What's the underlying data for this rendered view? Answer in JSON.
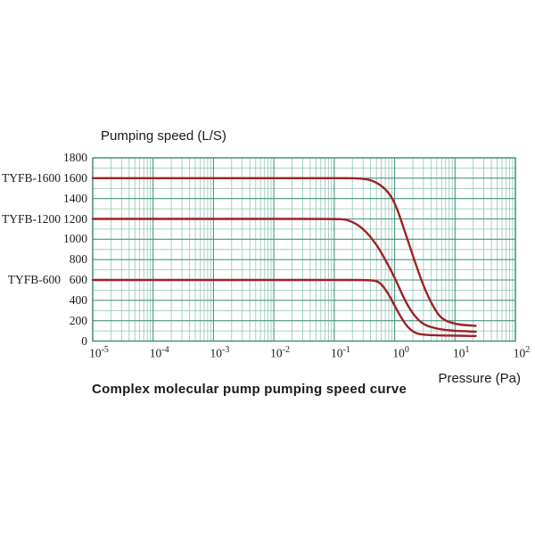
{
  "chart_data": {
    "type": "line",
    "title": "Complex molecular pump pumping speed curve",
    "ylabel": "Pumping speed (L/S)",
    "xlabel": "Pressure (Pa)",
    "x_scale": "log",
    "xlim": [
      1e-05,
      100
    ],
    "ylim": [
      0,
      1800
    ],
    "y_tick_step": 200,
    "y_minor_step": 100,
    "y_ticks": [
      0,
      200,
      400,
      600,
      800,
      1000,
      1200,
      1400,
      1600,
      1800
    ],
    "x_tick_base": "10",
    "x_tick_exponents": [
      -5,
      -4,
      -3,
      -2,
      -1,
      0,
      1,
      2
    ],
    "grid": {
      "on": true,
      "major_color": "#46967f",
      "minor_color": "#93c6b5",
      "border_color": "#3c8a74"
    },
    "legend_position": "left-of-axis",
    "line_color": "#9e2126",
    "series": [
      {
        "name": "TYFB-1600",
        "flat_value": 1600,
        "points": [
          [
            1e-05,
            1600
          ],
          [
            0.0001,
            1600
          ],
          [
            0.001,
            1600
          ],
          [
            0.01,
            1600
          ],
          [
            0.1,
            1600
          ],
          [
            0.28,
            1600
          ],
          [
            0.45,
            1575
          ],
          [
            0.7,
            1500
          ],
          [
            1.0,
            1370
          ],
          [
            1.5,
            1065
          ],
          [
            2.1,
            800
          ],
          [
            3.0,
            540
          ],
          [
            4.3,
            340
          ],
          [
            6,
            215
          ],
          [
            10,
            168
          ],
          [
            15,
            156
          ],
          [
            22,
            150
          ]
        ]
      },
      {
        "name": "TYFB-1200",
        "flat_value": 1200,
        "points": [
          [
            1e-05,
            1200
          ],
          [
            0.0001,
            1200
          ],
          [
            0.001,
            1200
          ],
          [
            0.01,
            1200
          ],
          [
            0.1,
            1200
          ],
          [
            0.17,
            1195
          ],
          [
            0.3,
            1110
          ],
          [
            0.5,
            950
          ],
          [
            0.7,
            800
          ],
          [
            1.0,
            625
          ],
          [
            1.5,
            390
          ],
          [
            2.1,
            250
          ],
          [
            3.0,
            160
          ],
          [
            5,
            120
          ],
          [
            9,
            102
          ],
          [
            15,
            96
          ],
          [
            22,
            92
          ]
        ]
      },
      {
        "name": "TYFB-600",
        "flat_value": 600,
        "points": [
          [
            1e-05,
            600
          ],
          [
            0.0001,
            600
          ],
          [
            0.001,
            600
          ],
          [
            0.01,
            600
          ],
          [
            0.1,
            600
          ],
          [
            0.4,
            600
          ],
          [
            0.55,
            585
          ],
          [
            0.7,
            510
          ],
          [
            0.85,
            430
          ],
          [
            1.0,
            345
          ],
          [
            1.5,
            160
          ],
          [
            2.1,
            80
          ],
          [
            3,
            62
          ],
          [
            5,
            56
          ],
          [
            9,
            53
          ],
          [
            15,
            51
          ],
          [
            22,
            50
          ]
        ]
      }
    ]
  }
}
